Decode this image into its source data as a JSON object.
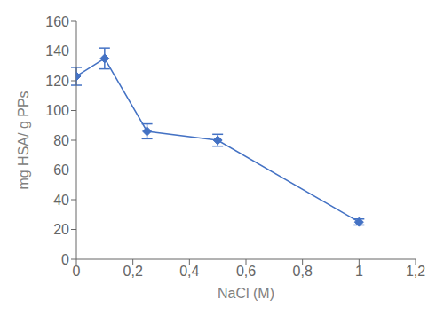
{
  "chart_data": {
    "type": "line",
    "x": [
      0,
      0.1,
      0.25,
      0.5,
      1.0
    ],
    "values": [
      123,
      135,
      86,
      80,
      25
    ],
    "yerr": [
      6,
      7,
      5,
      4,
      2
    ],
    "color": "#4472C4",
    "marker": "diamond",
    "xlabel": "NaCl (M)",
    "ylabel": "mg HSA/ g PPs",
    "xlim": [
      0,
      1.2
    ],
    "ylim": [
      0,
      160
    ],
    "xticks": [
      0,
      {
        "value": 0.2,
        "label": "0,2"
      },
      {
        "value": 0.4,
        "label": "0,4"
      },
      {
        "value": 0.6,
        "label": "0,6"
      },
      {
        "value": 0.8,
        "label": "0,8"
      },
      1,
      {
        "value": 1.2,
        "label": "1,2"
      }
    ],
    "yticks": [
      0,
      20,
      40,
      60,
      80,
      100,
      120,
      140,
      160
    ],
    "grid": false
  }
}
